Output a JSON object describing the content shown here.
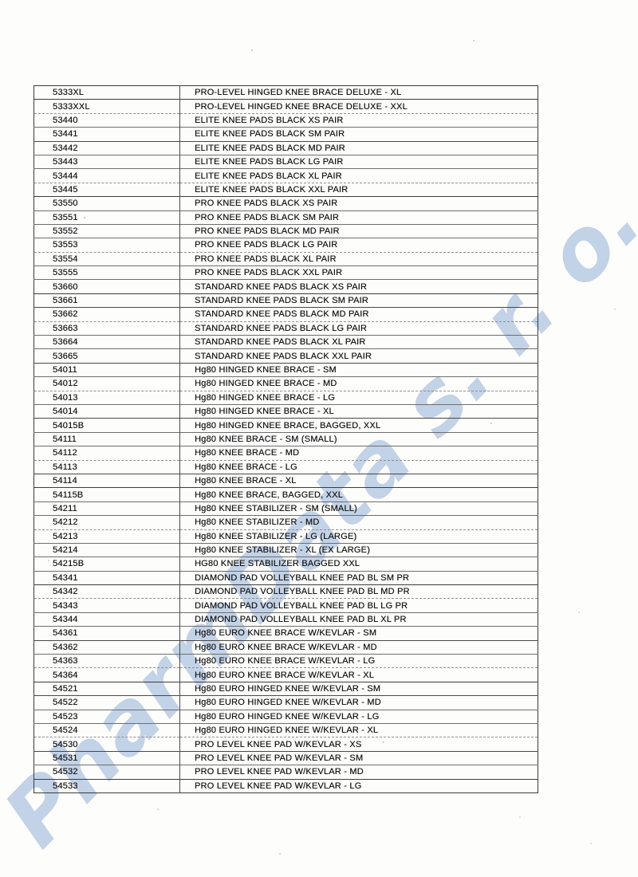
{
  "watermark": {
    "text": "PharmData s. r. o."
  },
  "table": {
    "rows": [
      {
        "code": "5333XL",
        "description": "PRO-LEVEL HINGED KNEE BRACE DELUXE - XL"
      },
      {
        "code": "5333XXL",
        "description": "PRO-LEVEL HINGED KNEE BRACE DELUXE - XXL"
      },
      {
        "code": "53440",
        "description": "ELITE KNEE PADS BLACK XS PAIR"
      },
      {
        "code": "53441",
        "description": "ELITE KNEE PADS BLACK SM PAIR"
      },
      {
        "code": "53442",
        "description": "ELITE KNEE PADS BLACK MD PAIR"
      },
      {
        "code": "53443",
        "description": "ELITE KNEE PADS BLACK LG PAIR"
      },
      {
        "code": "53444",
        "description": "ELITE KNEE PADS BLACK XL PAIR"
      },
      {
        "code": "53445",
        "description": "ELITE KNEE PADS BLACK XXL PAIR"
      },
      {
        "code": "53550",
        "description": "PRO KNEE PADS BLACK XS PAIR"
      },
      {
        "code": "53551",
        "description": "PRO KNEE PADS BLACK SM PAIR"
      },
      {
        "code": "53552",
        "description": "PRO KNEE PADS BLACK MD PAIR"
      },
      {
        "code": "53553",
        "description": "PRO KNEE PADS BLACK LG PAIR"
      },
      {
        "code": "53554",
        "description": "PRO KNEE PADS BLACK XL PAIR"
      },
      {
        "code": "53555",
        "description": "PRO KNEE PADS BLACK XXL PAIR"
      },
      {
        "code": "53660",
        "description": "STANDARD KNEE PADS BLACK XS PAIR"
      },
      {
        "code": "53661",
        "description": "STANDARD KNEE PADS BLACK SM PAIR"
      },
      {
        "code": "53662",
        "description": "STANDARD KNEE PADS BLACK MD PAIR"
      },
      {
        "code": "53663",
        "description": "STANDARD KNEE PADS BLACK LG PAIR"
      },
      {
        "code": "53664",
        "description": "STANDARD KNEE PADS BLACK XL PAIR"
      },
      {
        "code": "53665",
        "description": "STANDARD KNEE PADS BLACK XXL PAIR"
      },
      {
        "code": "54011",
        "description": "Hg80 HINGED KNEE BRACE - SM"
      },
      {
        "code": "54012",
        "description": "Hg80 HINGED KNEE BRACE - MD"
      },
      {
        "code": "54013",
        "description": "Hg80 HINGED KNEE BRACE - LG"
      },
      {
        "code": "54014",
        "description": "Hg80 HINGED KNEE BRACE - XL"
      },
      {
        "code": "54015B",
        "description": "Hg80 HINGED KNEE BRACE, BAGGED, XXL"
      },
      {
        "code": "54111",
        "description": "Hg80 KNEE BRACE - SM (SMALL)"
      },
      {
        "code": "54112",
        "description": "Hg80 KNEE BRACE - MD"
      },
      {
        "code": "54113",
        "description": "Hg80 KNEE BRACE - LG"
      },
      {
        "code": "54114",
        "description": "Hg80 KNEE BRACE - XL"
      },
      {
        "code": "54115B",
        "description": "Hg80 KNEE BRACE, BAGGED, XXL"
      },
      {
        "code": "54211",
        "description": "Hg80 KNEE STABILIZER - SM (SMALL)"
      },
      {
        "code": "54212",
        "description": "Hg80 KNEE STABILIZER - MD"
      },
      {
        "code": "54213",
        "description": "Hg80 KNEE STABILIZER - LG (LARGE)"
      },
      {
        "code": "54214",
        "description": "Hg80 KNEE STABILIZER - XL (EX LARGE)"
      },
      {
        "code": "54215B",
        "description": "HG80 KNEE STABILIZER BAGGED XXL"
      },
      {
        "code": "54341",
        "description": "DIAMOND PAD VOLLEYBALL KNEE PAD BL SM PR"
      },
      {
        "code": "54342",
        "description": "DIAMOND PAD VOLLEYBALL KNEE PAD BL MD PR"
      },
      {
        "code": "54343",
        "description": "DIAMOND PAD VOLLEYBALL KNEE PAD BL LG PR"
      },
      {
        "code": "54344",
        "description": "DIAMOND PAD VOLLEYBALL KNEE PAD BL XL PR"
      },
      {
        "code": "54361",
        "description": "Hg80 EURO KNEE BRACE W/KEVLAR - SM"
      },
      {
        "code": "54362",
        "description": "Hg80 EURO KNEE BRACE W/KEVLAR - MD"
      },
      {
        "code": "54363",
        "description": "Hg80 EURO KNEE BRACE W/KEVLAR - LG"
      },
      {
        "code": "54364",
        "description": "Hg80 EURO KNEE BRACE W/KEVLAR - XL"
      },
      {
        "code": "54521",
        "description": "Hg80 EURO HINGED KNEE W/KEVLAR - SM"
      },
      {
        "code": "54522",
        "description": "Hg80 EURO HINGED KNEE W/KEVLAR - MD"
      },
      {
        "code": "54523",
        "description": "Hg80 EURO HINGED KNEE W/KEVLAR - LG"
      },
      {
        "code": "54524",
        "description": "Hg80 EURO HINGED KNEE W/KEVLAR - XL"
      },
      {
        "code": "54530",
        "description": "PRO LEVEL KNEE PAD W/KEVLAR - XS"
      },
      {
        "code": "54531",
        "description": "PRO LEVEL KNEE PAD W/KEVLAR - SM"
      },
      {
        "code": "54532",
        "description": "PRO LEVEL KNEE PAD W/KEVLAR - MD"
      },
      {
        "code": "54533",
        "description": "PRO LEVEL KNEE PAD W/KEVLAR - LG"
      }
    ]
  },
  "colors": {
    "watermark_blue": "#b4c8e3",
    "table_border": "#3c3c3c",
    "text": "#161616"
  }
}
